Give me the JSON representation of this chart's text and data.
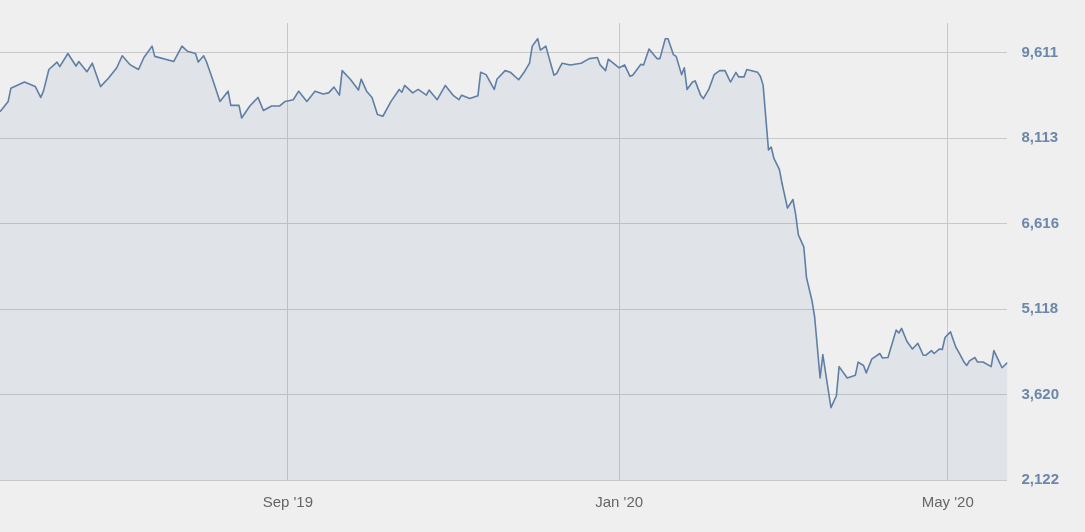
{
  "chart_data": {
    "type": "area",
    "marker": "none",
    "grid": true,
    "xlim": [
      "2019-05-18",
      "2020-05-23"
    ],
    "xticks": [
      {
        "value": "2019-09-01",
        "label": "Sep '19"
      },
      {
        "value": "2020-01-01",
        "label": "Jan '20"
      },
      {
        "value": "2020-05-01",
        "label": "May '20"
      }
    ],
    "ylim": [
      2122,
      10135
    ],
    "yticks": [
      {
        "value": 2122,
        "label": "2,122"
      },
      {
        "value": 3620,
        "label": "3,620"
      },
      {
        "value": 5118,
        "label": "5,118"
      },
      {
        "value": 6616,
        "label": "6,616"
      },
      {
        "value": 8113,
        "label": "8,113"
      },
      {
        "value": 9611,
        "label": "9,611"
      }
    ],
    "x": [
      "2019-05-18",
      "2019-05-21",
      "2019-05-22",
      "2019-05-27",
      "2019-05-31",
      "2019-06-02",
      "2019-06-03",
      "2019-06-05",
      "2019-06-08",
      "2019-06-09",
      "2019-06-12",
      "2019-06-15",
      "2019-06-16",
      "2019-06-19",
      "2019-06-21",
      "2019-06-24",
      "2019-06-27",
      "2019-06-30",
      "2019-07-02",
      "2019-07-05",
      "2019-07-08",
      "2019-07-10",
      "2019-07-13",
      "2019-07-14",
      "2019-07-21",
      "2019-07-24",
      "2019-07-26",
      "2019-07-29",
      "2019-07-30",
      "2019-08-01",
      "2019-08-02",
      "2019-08-04",
      "2019-08-07",
      "2019-08-10",
      "2019-08-11",
      "2019-08-14",
      "2019-08-15",
      "2019-08-18",
      "2019-08-21",
      "2019-08-23",
      "2019-08-26",
      "2019-08-29",
      "2019-08-31",
      "2019-09-03",
      "2019-09-05",
      "2019-09-08",
      "2019-09-11",
      "2019-09-14",
      "2019-09-16",
      "2019-09-18",
      "2019-09-20",
      "2019-09-21",
      "2019-09-24",
      "2019-09-27",
      "2019-09-28",
      "2019-09-30",
      "2019-10-02",
      "2019-10-04",
      "2019-10-06",
      "2019-10-09",
      "2019-10-12",
      "2019-10-13",
      "2019-10-14",
      "2019-10-17",
      "2019-10-19",
      "2019-10-22",
      "2019-10-23",
      "2019-10-26",
      "2019-10-29",
      "2019-11-01",
      "2019-11-03",
      "2019-11-04",
      "2019-11-07",
      "2019-11-10",
      "2019-11-11",
      "2019-11-13",
      "2019-11-16",
      "2019-11-17",
      "2019-11-20",
      "2019-11-22",
      "2019-11-25",
      "2019-11-27",
      "2019-11-29",
      "2019-11-30",
      "2019-12-02",
      "2019-12-03",
      "2019-12-05",
      "2019-12-08",
      "2019-12-09",
      "2019-12-11",
      "2019-12-14",
      "2019-12-18",
      "2019-12-21",
      "2019-12-24",
      "2019-12-25",
      "2019-12-27",
      "2019-12-28",
      "2020-01-01",
      "2020-01-03",
      "2020-01-05",
      "2020-01-06",
      "2020-01-09",
      "2020-01-10",
      "2020-01-12",
      "2020-01-15",
      "2020-01-16",
      "2020-01-18",
      "2020-01-19",
      "2020-01-21",
      "2020-01-22",
      "2020-01-24",
      "2020-01-25",
      "2020-01-26",
      "2020-01-28",
      "2020-01-29",
      "2020-01-31",
      "2020-02-01",
      "2020-02-03",
      "2020-02-05",
      "2020-02-07",
      "2020-02-09",
      "2020-02-10",
      "2020-02-11",
      "2020-02-13",
      "2020-02-14",
      "2020-02-16",
      "2020-02-17",
      "2020-02-21",
      "2020-02-22",
      "2020-02-23",
      "2020-02-25",
      "2020-02-26",
      "2020-02-27",
      "2020-02-29",
      "2020-03-01",
      "2020-03-03",
      "2020-03-05",
      "2020-03-06",
      "2020-03-07",
      "2020-03-09",
      "2020-03-10",
      "2020-03-12",
      "2020-03-13",
      "2020-03-15",
      "2020-03-16",
      "2020-03-18",
      "2020-03-19",
      "2020-03-21",
      "2020-03-22",
      "2020-03-25",
      "2020-03-28",
      "2020-03-29",
      "2020-03-31",
      "2020-04-01",
      "2020-04-03",
      "2020-04-06",
      "2020-04-07",
      "2020-04-09",
      "2020-04-12",
      "2020-04-13",
      "2020-04-14",
      "2020-04-16",
      "2020-04-18",
      "2020-04-20",
      "2020-04-22",
      "2020-04-23",
      "2020-04-25",
      "2020-04-26",
      "2020-04-28",
      "2020-04-29",
      "2020-04-30",
      "2020-05-02",
      "2020-05-04",
      "2020-05-05",
      "2020-05-07",
      "2020-05-08",
      "2020-05-09",
      "2020-05-11",
      "2020-05-12",
      "2020-05-14",
      "2020-05-17",
      "2020-05-18",
      "2020-05-20",
      "2020-05-21",
      "2020-05-23"
    ],
    "series": [
      {
        "color": "#5f7fa6",
        "values": [
          8580,
          8760,
          8990,
          9100,
          9020,
          8830,
          8940,
          9320,
          9450,
          9370,
          9600,
          9380,
          9460,
          9280,
          9430,
          9020,
          9170,
          9350,
          9560,
          9400,
          9320,
          9530,
          9730,
          9550,
          9460,
          9730,
          9640,
          9600,
          9450,
          9560,
          9460,
          9190,
          8760,
          8940,
          8690,
          8690,
          8470,
          8680,
          8830,
          8600,
          8680,
          8680,
          8760,
          8790,
          8940,
          8760,
          8940,
          8890,
          8910,
          9010,
          8870,
          9300,
          9150,
          8960,
          9150,
          8940,
          8830,
          8530,
          8500,
          8760,
          8970,
          8920,
          9040,
          8910,
          8970,
          8870,
          8960,
          8790,
          9040,
          8860,
          8790,
          8870,
          8810,
          8860,
          9270,
          9230,
          8970,
          9150,
          9300,
          9270,
          9140,
          9270,
          9430,
          9730,
          9860,
          9660,
          9730,
          9220,
          9250,
          9430,
          9400,
          9430,
          9510,
          9530,
          9400,
          9300,
          9500,
          9350,
          9400,
          9200,
          9220,
          9410,
          9400,
          9680,
          9510,
          9510,
          9860,
          9860,
          9580,
          9550,
          9230,
          9350,
          8970,
          9100,
          9120,
          8870,
          8810,
          8970,
          9230,
          9300,
          9300,
          9200,
          9100,
          9270,
          9190,
          9190,
          9320,
          9270,
          9200,
          9050,
          7910,
          7960,
          7760,
          7570,
          7320,
          6890,
          7040,
          6780,
          6420,
          6210,
          5670,
          5270,
          4980,
          3910,
          4320,
          3700,
          3390,
          3600,
          4110,
          3910,
          3960,
          4190,
          4130,
          4000,
          4240,
          4340,
          4260,
          4270,
          4750,
          4700,
          4780,
          4550,
          4420,
          4520,
          4310,
          4310,
          4390,
          4340,
          4420,
          4410,
          4620,
          4720,
          4450,
          4370,
          4190,
          4130,
          4210,
          4270,
          4190,
          4190,
          4110,
          4390,
          4190,
          4090,
          4180
        ]
      }
    ]
  }
}
